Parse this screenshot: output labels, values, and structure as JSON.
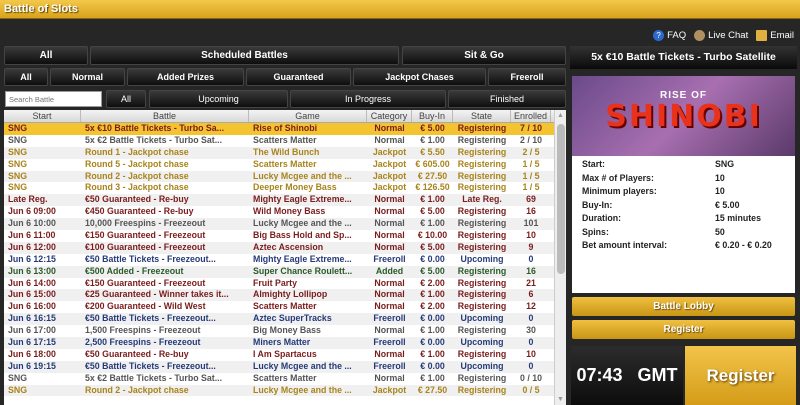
{
  "app": {
    "title": "Battle of Slots"
  },
  "links": {
    "faq": "FAQ",
    "live_chat": "Live Chat",
    "email": "Email"
  },
  "tabs_type": [
    "All",
    "Scheduled Battles",
    "Sit & Go"
  ],
  "tabs_category": [
    "All",
    "Normal",
    "Added Prizes",
    "Guaranteed",
    "Jackpot Chases",
    "Freeroll"
  ],
  "tabs_state": [
    "All",
    "Upcoming",
    "In Progress",
    "Finished"
  ],
  "search": {
    "placeholder": "Search Battle",
    "value": ""
  },
  "columns": [
    "Start",
    "Battle",
    "Game",
    "Category",
    "Buy-In",
    "State",
    "Enrolled"
  ],
  "colors": {
    "normal": "#7a1c1c",
    "jackpot": "#a8841c",
    "plain": "#555555",
    "freeroll": "#263a78",
    "added": "#2a5a2a",
    "accent": "#f4c430"
  },
  "rows": [
    [
      "SNG",
      "5x €10 Battle Tickets - Turbo Sa...",
      "Rise of Shinobi",
      "Normal",
      "€ 5.00",
      "Registering",
      "7 / 10",
      "sel"
    ],
    [
      "SNG",
      "5x €2 Battle Tickets - Turbo Sat...",
      "Scatters Matter",
      "Normal",
      "€ 1.00",
      "Registering",
      "2 / 10",
      "plain"
    ],
    [
      "SNG",
      "Round 1 - Jackpot chase",
      "The Wild Bunch",
      "Jackpot",
      "€ 5.50",
      "Registering",
      "2 / 5",
      "jackpot"
    ],
    [
      "SNG",
      "Round 5 - Jackpot chase",
      "Scatters Matter",
      "Jackpot",
      "€ 605.00",
      "Registering",
      "1 / 5",
      "jackpot"
    ],
    [
      "SNG",
      "Round 2 - Jackpot chase",
      "Lucky Mcgee and the ...",
      "Jackpot",
      "€ 27.50",
      "Registering",
      "1 / 5",
      "jackpot"
    ],
    [
      "SNG",
      "Round 3 - Jackpot chase",
      "Deeper Money Bass",
      "Jackpot",
      "€ 126.50",
      "Registering",
      "1 / 5",
      "jackpot"
    ],
    [
      "Late Reg.",
      "€50 Guaranteed - Re-buy",
      "Mighty Eagle Extreme...",
      "Normal",
      "€ 1.00",
      "Late Reg.",
      "69",
      "normal"
    ],
    [
      "Jun 6 09:00",
      "€450 Guaranteed - Re-buy",
      "Wild Money Bass",
      "Normal",
      "€ 5.00",
      "Registering",
      "16",
      "normal"
    ],
    [
      "Jun 6 10:00",
      "10,000 Freespins - Freezeout",
      "Lucky Mcgee and the ...",
      "Normal",
      "€ 1.00",
      "Registering",
      "101",
      "plain"
    ],
    [
      "Jun 6 11:00",
      "€150 Guaranteed - Freezeout",
      "Big Bass Hold and Sp...",
      "Normal",
      "€ 10.00",
      "Registering",
      "10",
      "normal"
    ],
    [
      "Jun 6 12:00",
      "€100 Guaranteed - Freezeout",
      "Aztec Ascension",
      "Normal",
      "€ 5.00",
      "Registering",
      "9",
      "normal"
    ],
    [
      "Jun 6 12:15",
      "€50 Battle Tickets - Freezeout...",
      "Mighty Eagle Extreme...",
      "Freeroll",
      "€ 0.00",
      "Upcoming",
      "0",
      "freeroll"
    ],
    [
      "Jun 6 13:00",
      "€500 Added - Freezeout",
      "Super Chance Roulett...",
      "Added",
      "€ 5.00",
      "Registering",
      "16",
      "added"
    ],
    [
      "Jun 6 14:00",
      "€150 Guaranteed - Freezeout",
      "Fruit Party",
      "Normal",
      "€ 2.00",
      "Registering",
      "21",
      "normal"
    ],
    [
      "Jun 6 15:00",
      "€25 Guaranteed - Winner takes it...",
      "Almighty Lollipop",
      "Normal",
      "€ 1.00",
      "Registering",
      "6",
      "normal"
    ],
    [
      "Jun 6 16:00",
      "€200 Guaranteed - Wild West",
      "Scatters Matter",
      "Normal",
      "€ 2.00",
      "Registering",
      "12",
      "normal"
    ],
    [
      "Jun 6 16:15",
      "€50 Battle Tickets - Freezeout...",
      "Aztec SuperTracks",
      "Freeroll",
      "€ 0.00",
      "Upcoming",
      "0",
      "freeroll"
    ],
    [
      "Jun 6 17:00",
      "1,500 Freespins - Freezeout",
      "Big Money Bass",
      "Normal",
      "€ 1.00",
      "Registering",
      "30",
      "plain"
    ],
    [
      "Jun 6 17:15",
      "2,500 Freespins - Freezeout",
      "Miners Matter",
      "Freeroll",
      "€ 0.00",
      "Upcoming",
      "0",
      "freeroll"
    ],
    [
      "Jun 6 18:00",
      "€50 Guaranteed - Re-buy",
      "I Am Spartacus",
      "Normal",
      "€ 1.00",
      "Registering",
      "10",
      "normal"
    ],
    [
      "Jun 6 19:15",
      "€50 Battle Tickets - Freezeout...",
      "Lucky Mcgee and the ...",
      "Freeroll",
      "€ 0.00",
      "Upcoming",
      "0",
      "freeroll"
    ],
    [
      "SNG",
      "5x €2 Battle Tickets - Turbo Sat...",
      "Scatters Matter",
      "Normal",
      "€ 1.00",
      "Registering",
      "0 / 10",
      "plain"
    ],
    [
      "SNG",
      "Round 2 - Jackpot chase",
      "Lucky Mcgee and the ...",
      "Jackpot",
      "€ 27.50",
      "Registering",
      "0 / 5",
      "jackpot"
    ]
  ],
  "detail": {
    "title": "5x €10 Battle Tickets - Turbo Satellite",
    "banner_top": "RISE OF",
    "banner_main": "SHINOBI",
    "fields": [
      [
        "Start:",
        "SNG"
      ],
      [
        "Max # of Players:",
        "10"
      ],
      [
        "Minimum players:",
        "10"
      ],
      [
        "Buy-In:",
        "€ 5.00"
      ],
      [
        "Duration:",
        "15 minutes"
      ],
      [
        "Spins:",
        "50"
      ],
      [
        "Bet amount interval:",
        "€ 0.20 - € 0.20"
      ]
    ],
    "battle_lobby": "Battle Lobby",
    "register": "Register",
    "clock": "07:43 GMT",
    "register_big": "Register"
  }
}
